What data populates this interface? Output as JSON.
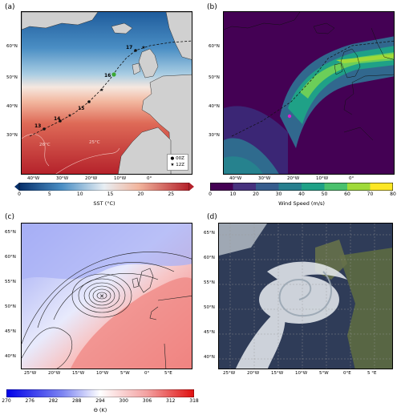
{
  "panels": {
    "a": {
      "label": "(a)",
      "xticks": [
        "40°W",
        "30°W",
        "20°W",
        "10°W",
        "0°"
      ],
      "yticks": [
        "60°N",
        "50°N",
        "40°N",
        "30°N"
      ]
    },
    "b": {
      "label": "(b)",
      "xticks": [
        "40°W",
        "30°W",
        "20°W",
        "10°W",
        "0°"
      ],
      "yticks": [
        "60°N",
        "50°N",
        "40°N",
        "30°N"
      ]
    },
    "c": {
      "label": "(c)",
      "xticks": [
        "25°W",
        "20°W",
        "15°W",
        "10°W",
        "5°W",
        "0°",
        "5°E"
      ],
      "yticks": [
        "65°N",
        "60°N",
        "55°N",
        "50°N",
        "45°N",
        "40°N"
      ]
    },
    "d": {
      "label": "(d)",
      "xticks": [
        "25°W",
        "20°W",
        "15°W",
        "10°W",
        "5°W",
        "0°E",
        "5 °E"
      ],
      "yticks": [
        "65°N",
        "60°N",
        "55°N",
        "50°N",
        "45°N",
        "40°N"
      ]
    }
  },
  "track": {
    "day_labels": [
      "13",
      "14",
      "15",
      "16",
      "17"
    ],
    "isotherm_labels": [
      "26°C",
      "25°C"
    ],
    "legend": [
      {
        "marker": "●",
        "label": "00Z"
      },
      {
        "marker": "★",
        "label": "12Z"
      }
    ]
  },
  "colorbars": {
    "sst": {
      "label": "SST (°C)",
      "ticks": [
        "0",
        "5",
        "10",
        "15",
        "20",
        "25"
      ],
      "min": 0,
      "max": 28
    },
    "wind": {
      "label": "Wind Speed (m/s)",
      "ticks": [
        "0",
        "10",
        "20",
        "30",
        "40",
        "50",
        "60",
        "70",
        "80"
      ],
      "min": 0,
      "max": 80,
      "colors": [
        "#440154",
        "#46327e",
        "#365c8d",
        "#277f8e",
        "#1fa187",
        "#4ac16d",
        "#a0da39",
        "#fde725"
      ]
    },
    "theta": {
      "label": "Θ (K)",
      "ticks": [
        "270",
        "276",
        "282",
        "288",
        "294",
        "300",
        "306",
        "312",
        "318"
      ],
      "min": 270,
      "max": 318
    }
  },
  "colors": {
    "land": "#d0d0d0",
    "marker_16": "#3aa832",
    "storm_center": "#e020d0"
  }
}
